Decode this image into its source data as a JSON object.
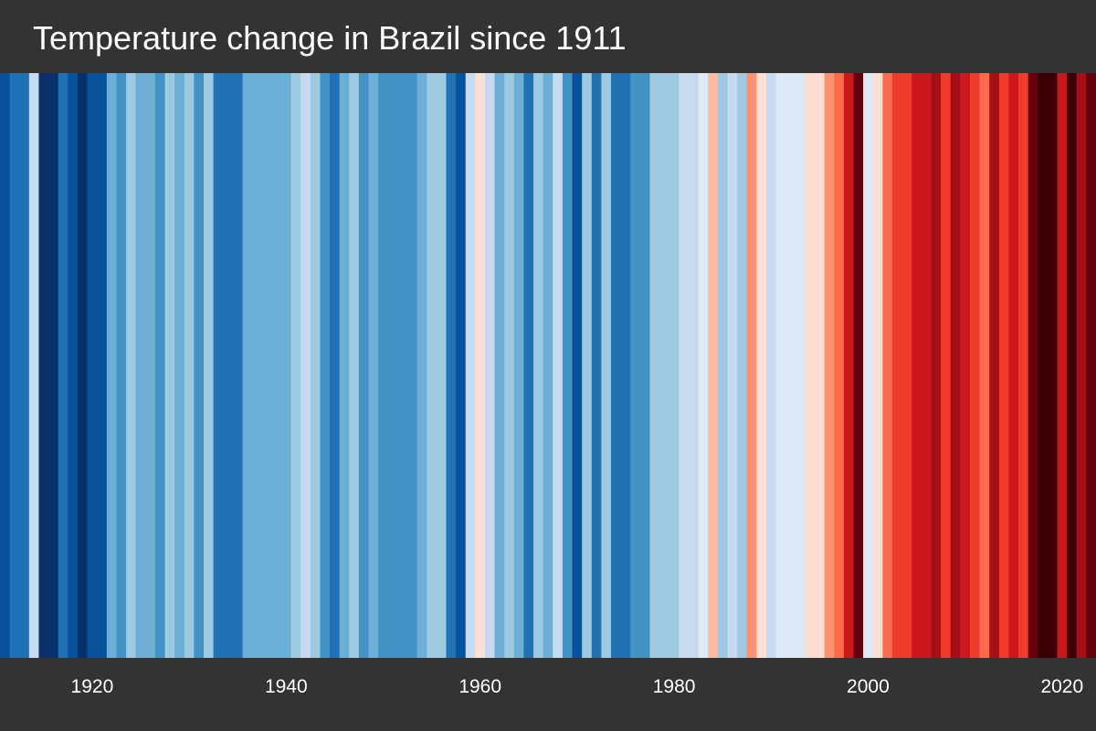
{
  "chart_data": {
    "type": "heatmap",
    "title": "Temperature change in Brazil since 1911",
    "xlabel": "",
    "ylabel": "",
    "grid": false,
    "legend": "none",
    "x_range": [
      1911,
      2024
    ],
    "tick_labels": [
      "1920",
      "1940",
      "1960",
      "1980",
      "2000",
      "2020"
    ],
    "tick_values": [
      1920,
      1940,
      1960,
      1980,
      2000,
      2020
    ],
    "color_scale": [
      "#08306b",
      "#08519c",
      "#2171b5",
      "#4292c6",
      "#6baed6",
      "#9ecae1",
      "#c6dbef",
      "#deebf7",
      "#fee0d2",
      "#fcbba1",
      "#fc9272",
      "#fb6a4a",
      "#ef3b2c",
      "#cb181d",
      "#a50f15",
      "#67000d",
      "#3b0006"
    ],
    "years": [
      1911,
      1912,
      1913,
      1914,
      1915,
      1916,
      1917,
      1918,
      1919,
      1920,
      1921,
      1922,
      1923,
      1924,
      1925,
      1926,
      1927,
      1928,
      1929,
      1930,
      1931,
      1932,
      1933,
      1934,
      1935,
      1936,
      1937,
      1938,
      1939,
      1940,
      1941,
      1942,
      1943,
      1944,
      1945,
      1946,
      1947,
      1948,
      1949,
      1950,
      1951,
      1952,
      1953,
      1954,
      1955,
      1956,
      1957,
      1958,
      1959,
      1960,
      1961,
      1962,
      1963,
      1964,
      1965,
      1966,
      1967,
      1968,
      1969,
      1970,
      1971,
      1972,
      1973,
      1974,
      1975,
      1976,
      1977,
      1978,
      1979,
      1980,
      1981,
      1982,
      1983,
      1984,
      1985,
      1986,
      1987,
      1988,
      1989,
      1990,
      1991,
      1992,
      1993,
      1994,
      1995,
      1996,
      1997,
      1998,
      1999,
      2000,
      2001,
      2002,
      2003,
      2004,
      2005,
      2006,
      2007,
      2008,
      2009,
      2010,
      2011,
      2012,
      2013,
      2014,
      2015,
      2016,
      2017,
      2018,
      2019,
      2020,
      2021,
      2022,
      2023
    ],
    "color_index": [
      1,
      2,
      2,
      6,
      0,
      0,
      2,
      1,
      0,
      1,
      1,
      4,
      3,
      5,
      4,
      4,
      3,
      5,
      4,
      5,
      3,
      5,
      2,
      2,
      2,
      4,
      4,
      4,
      4,
      4,
      5,
      6,
      5,
      3,
      2,
      4,
      5,
      3,
      4,
      3,
      3,
      3,
      3,
      4,
      5,
      5,
      2,
      1,
      6,
      8,
      6,
      4,
      5,
      4,
      2,
      5,
      4,
      6,
      3,
      1,
      5,
      2,
      5,
      2,
      2,
      3,
      3,
      5,
      5,
      5,
      6,
      6,
      7,
      9,
      5,
      6,
      5,
      10,
      8,
      6,
      7,
      7,
      7,
      8,
      8,
      10,
      11,
      13,
      15,
      7,
      8,
      11,
      12,
      12,
      13,
      13,
      14,
      12,
      14,
      13,
      12,
      11,
      14,
      12,
      13,
      12,
      15,
      16,
      16,
      13,
      16,
      14,
      15
    ],
    "colors": {
      "background": "#333333",
      "text": "#ffffff"
    }
  }
}
